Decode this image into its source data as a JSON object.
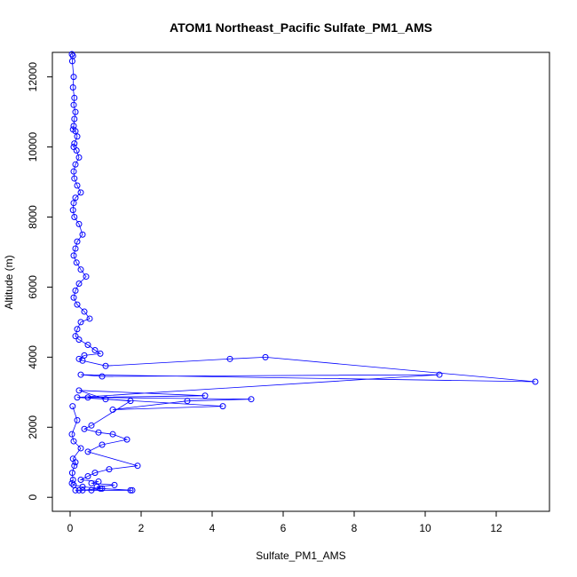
{
  "chart_data": {
    "type": "line",
    "title": "ATOM1 Northeast_Pacific Sulfate_PM1_AMS",
    "xlabel": "Sulfate_PM1_AMS",
    "ylabel": "Altitude (m)",
    "xlim": [
      -0.5,
      13.5
    ],
    "ylim": [
      -400,
      12700
    ],
    "xticks": [
      0,
      2,
      4,
      6,
      8,
      10,
      12
    ],
    "yticks": [
      0,
      2000,
      4000,
      6000,
      8000,
      10000,
      12000
    ],
    "xtick_labels": [
      "0",
      "2",
      "4",
      "6",
      "8",
      "10",
      "12"
    ],
    "ytick_labels": [
      "0",
      "2000",
      "4000",
      "6000",
      "8000",
      "10000",
      "12000"
    ],
    "grid": false,
    "marker": "open-circle",
    "color": "#0000ff",
    "series": [
      {
        "x": [
          0.05,
          0.08,
          0.06,
          0.1,
          0.08,
          0.12,
          0.1,
          0.15,
          0.12,
          0.1,
          0.08,
          0.15,
          0.2,
          0.12,
          0.1,
          0.18,
          0.25,
          0.15,
          0.1,
          0.12,
          0.2,
          0.3,
          0.15,
          0.1,
          0.08,
          0.12,
          0.25,
          0.35,
          0.2,
          0.15,
          0.1,
          0.18,
          0.3,
          0.45,
          0.25,
          0.15,
          0.1,
          0.2,
          0.4,
          0.55,
          0.3,
          0.2,
          0.15,
          0.25,
          0.5,
          0.7,
          0.85,
          0.4,
          0.25,
          0.35,
          1.0,
          4.5,
          5.5,
          13.1,
          0.3,
          0.9,
          10.4,
          0.2,
          4.3,
          1.2,
          3.3,
          5.1,
          0.5,
          3.8,
          0.25,
          1.0,
          1.7,
          0.6,
          0.4,
          0.8,
          1.2,
          1.6,
          0.9,
          0.5,
          1.9,
          1.1,
          0.7,
          0.5,
          0.3,
          0.8,
          0.6,
          1.25,
          0.75,
          0.9,
          0.35,
          0.25,
          0.6,
          0.15,
          1.7,
          1.75,
          0.85,
          0.35,
          0.1,
          0.05,
          0.08,
          0.06,
          0.12,
          0.15,
          0.08,
          0.3,
          0.1,
          0.05,
          0.2,
          0.07
        ],
        "y": [
          12650,
          12600,
          12450,
          12000,
          11700,
          11400,
          11200,
          11000,
          10800,
          10600,
          10500,
          10450,
          10300,
          10100,
          10000,
          9900,
          9700,
          9500,
          9300,
          9100,
          8900,
          8700,
          8550,
          8400,
          8200,
          8000,
          7800,
          7500,
          7300,
          7100,
          6900,
          6700,
          6500,
          6300,
          6100,
          5900,
          5700,
          5500,
          5300,
          5100,
          5000,
          4800,
          4600,
          4500,
          4350,
          4200,
          4100,
          4050,
          3950,
          3900,
          3750,
          3950,
          4000,
          3300,
          3500,
          3450,
          3500,
          2850,
          2600,
          2500,
          2750,
          2800,
          2850,
          2900,
          3050,
          2800,
          2750,
          2050,
          1950,
          1850,
          1800,
          1650,
          1500,
          1300,
          900,
          800,
          700,
          600,
          500,
          450,
          400,
          350,
          300,
          250,
          200,
          200,
          200,
          200,
          200,
          200,
          250,
          300,
          350,
          400,
          500,
          700,
          900,
          1000,
          1100,
          1400,
          1600,
          1800,
          2200,
          2600
        ]
      }
    ]
  }
}
